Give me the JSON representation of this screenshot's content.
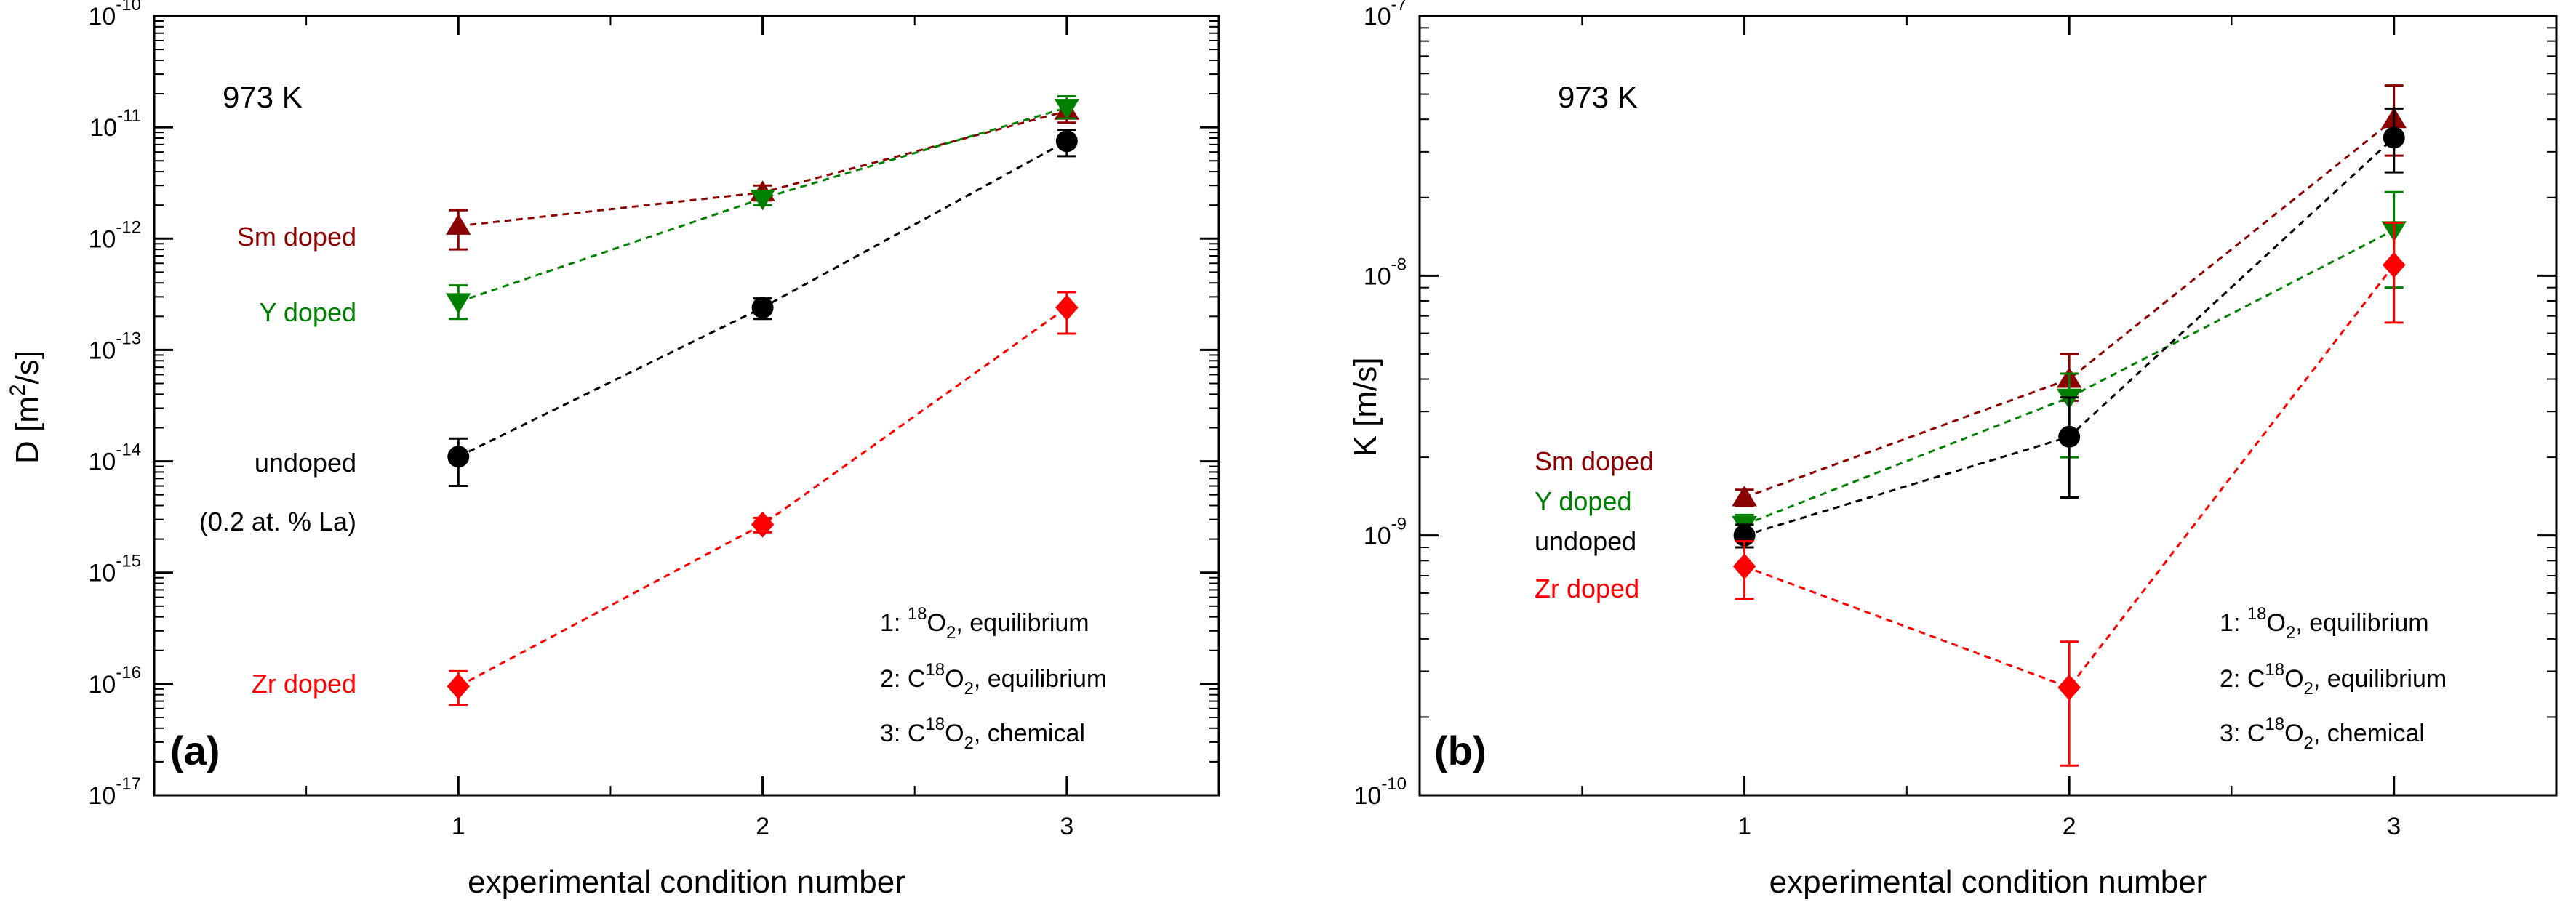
{
  "chart_data": [
    {
      "type": "scatter",
      "panel_label": "(a)",
      "temperature": "973 K",
      "xlabel": "experimental condition number",
      "ylabel_base": "D [m",
      "ylabel_exp": "2",
      "ylabel_tail": "/s]",
      "x_ticks": [
        1,
        2,
        3
      ],
      "xlim": [
        0,
        3.5
      ],
      "ylim_log10": [
        -17,
        -10
      ],
      "y_tick_exponents": [
        "-10",
        "-11",
        "-12",
        "-13",
        "-14",
        "-15",
        "-16",
        "-17"
      ],
      "series": [
        {
          "name": "Sm doped",
          "color": "#8b0000",
          "marker": "triangle-up",
          "x": [
            1,
            2,
            3
          ],
          "y": [
            1.3e-12,
            2.6e-12,
            1.4e-11
          ],
          "err_lo": [
            8e-13,
            2.2e-12,
            1.1e-11
          ],
          "err_hi": [
            1.8e-12,
            3e-12,
            1.7e-11
          ]
        },
        {
          "name": "Y doped",
          "color": "#008000",
          "marker": "triangle-down",
          "x": [
            1,
            2,
            3
          ],
          "y": [
            2.7e-13,
            2.3e-12,
            1.5e-11
          ],
          "err_lo": [
            1.9e-13,
            2e-12,
            1.2e-11
          ],
          "err_hi": [
            3.8e-13,
            2.6e-12,
            1.9e-11
          ]
        },
        {
          "name": "undoped",
          "color": "#000000",
          "marker": "circle",
          "x": [
            1,
            2,
            3
          ],
          "y": [
            1.1e-14,
            2.4e-13,
            7.5e-12
          ],
          "err_lo": [
            6e-15,
            1.9e-13,
            5.5e-12
          ],
          "err_hi": [
            1.6e-14,
            2.9e-13,
            9.5e-12
          ]
        },
        {
          "name": "Zr doped",
          "color": "#ff0000",
          "marker": "diamond",
          "x": [
            1,
            2,
            3
          ],
          "y": [
            9.5e-17,
            2.7e-15,
            2.4e-13
          ],
          "err_lo": [
            6.5e-17,
            2.3e-15,
            1.4e-13
          ],
          "err_hi": [
            1.3e-16,
            3.1e-15,
            3.3e-13
          ]
        }
      ],
      "series_labels": [
        {
          "text": "Sm doped",
          "color": "#8b0000"
        },
        {
          "text": "Y doped",
          "color": "#008000"
        },
        {
          "text": "undoped",
          "color": "#000000"
        },
        {
          "text": "(0.2 at. % La)",
          "color": "#000000"
        },
        {
          "text": "Zr doped",
          "color": "#ff0000"
        }
      ],
      "conditions": [
        {
          "prefix": "1: ",
          "pre_iso": "",
          "iso": "18",
          "mol": "O",
          "sub": "2",
          "suffix": ", equilibrium"
        },
        {
          "prefix": "2: ",
          "pre_iso": "C",
          "iso": "18",
          "mol": "O",
          "sub": "2",
          "suffix": ", equilibrium"
        },
        {
          "prefix": "3: ",
          "pre_iso": "C",
          "iso": "18",
          "mol": "O",
          "sub": "2",
          "suffix": ", chemical"
        }
      ]
    },
    {
      "type": "scatter",
      "panel_label": "(b)",
      "temperature": "973 K",
      "xlabel": "experimental condition number",
      "ylabel_base": "K [m/s]",
      "ylabel_exp": "",
      "ylabel_tail": "",
      "x_ticks": [
        1,
        2,
        3
      ],
      "xlim": [
        0,
        3.5
      ],
      "ylim_log10": [
        -10,
        -7
      ],
      "y_tick_exponents": [
        "-7",
        "-8",
        "-9",
        "-10"
      ],
      "series": [
        {
          "name": "Sm doped",
          "color": "#8b0000",
          "marker": "triangle-up",
          "x": [
            1,
            2,
            3
          ],
          "y": [
            1.4e-09,
            4e-09,
            4e-08
          ],
          "err_lo": [
            1.3e-09,
            3.3e-09,
            2.9e-08
          ],
          "err_hi": [
            1.5e-09,
            5e-09,
            5.4e-08
          ]
        },
        {
          "name": "Y doped",
          "color": "#008000",
          "marker": "triangle-down",
          "x": [
            1,
            2,
            3
          ],
          "y": [
            1.1e-09,
            3.4e-09,
            1.5e-08
          ],
          "err_lo": [
            1e-09,
            2e-09,
            9e-09
          ],
          "err_hi": [
            1.2e-09,
            4.2e-09,
            2.1e-08
          ]
        },
        {
          "name": "undoped",
          "color": "#000000",
          "marker": "circle",
          "x": [
            1,
            2,
            3
          ],
          "y": [
            1e-09,
            2.4e-09,
            3.4e-08
          ],
          "err_lo": [
            9e-10,
            1.4e-09,
            2.5e-08
          ],
          "err_hi": [
            1.1e-09,
            3.4e-09,
            4.4e-08
          ]
        },
        {
          "name": "Zr doped",
          "color": "#ff0000",
          "marker": "diamond",
          "x": [
            1,
            2,
            3
          ],
          "y": [
            7.6e-10,
            2.6e-10,
            1.1e-08
          ],
          "err_lo": [
            5.7e-10,
            1.3e-10,
            6.6e-09
          ],
          "err_hi": [
            9.5e-10,
            3.9e-10,
            1.6e-08
          ]
        }
      ],
      "series_labels": [
        {
          "text": "Sm doped",
          "color": "#8b0000"
        },
        {
          "text": "Y doped",
          "color": "#008000"
        },
        {
          "text": "undoped",
          "color": "#000000"
        },
        {
          "text": "Zr doped",
          "color": "#ff0000"
        }
      ],
      "conditions": [
        {
          "prefix": "1: ",
          "pre_iso": "",
          "iso": "18",
          "mol": "O",
          "sub": "2",
          "suffix": ", equilibrium"
        },
        {
          "prefix": "2: ",
          "pre_iso": "C",
          "iso": "18",
          "mol": "O",
          "sub": "2",
          "suffix": ", equilibrium"
        },
        {
          "prefix": "3: ",
          "pre_iso": "C",
          "iso": "18",
          "mol": "O",
          "sub": "2",
          "suffix": ", chemical"
        }
      ]
    }
  ]
}
